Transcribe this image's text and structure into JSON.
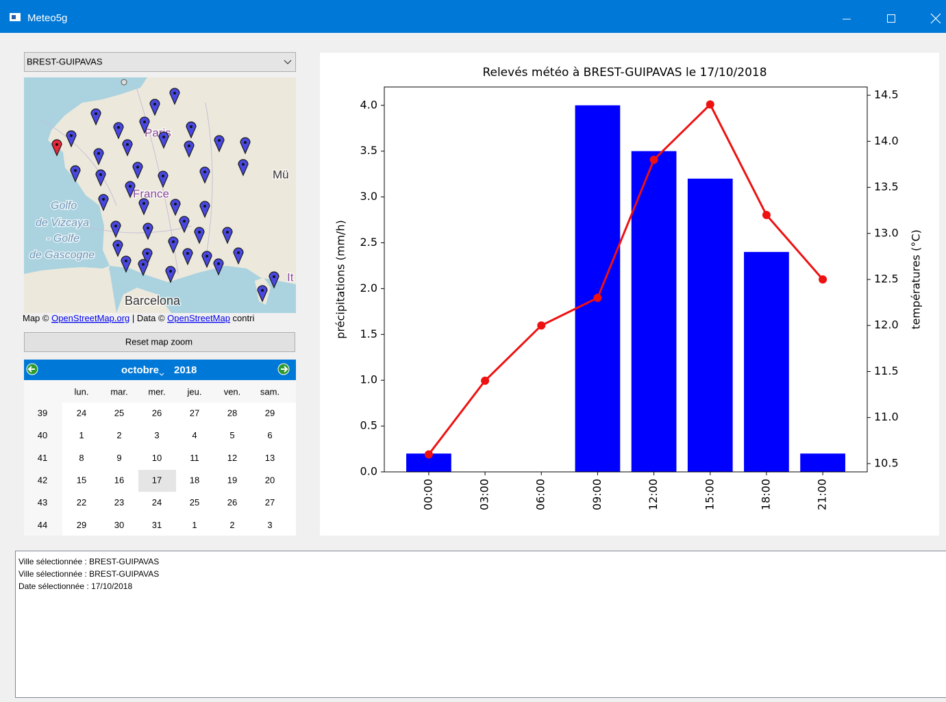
{
  "window": {
    "title": "Meteo5g"
  },
  "city_select": {
    "value": "BREST-GUIPAVAS"
  },
  "map": {
    "labels": [
      "Paris",
      "France",
      "Mü",
      "Golfo",
      "de Vizcaya",
      "- Golfe",
      "de Gascogne",
      "Barcelona",
      "It"
    ],
    "attribution": [
      "Map © ",
      "OpenStreetMap.org",
      " | Data © ",
      "OpenStreetMap",
      " contri"
    ]
  },
  "reset_button": {
    "label": "Reset map zoom"
  },
  "calendar": {
    "month": "octobre",
    "year": 2018,
    "weekdays": [
      "lun.",
      "mar.",
      "mer.",
      "jeu.",
      "ven.",
      "sam."
    ],
    "weeks": [
      {
        "number": 39,
        "days": [
          24,
          25,
          26,
          27,
          28,
          29
        ]
      },
      {
        "number": 40,
        "days": [
          1,
          2,
          3,
          4,
          5,
          6
        ]
      },
      {
        "number": 41,
        "days": [
          8,
          9,
          10,
          11,
          12,
          13
        ]
      },
      {
        "number": 42,
        "days": [
          15,
          16,
          17,
          18,
          19,
          20
        ]
      },
      {
        "number": 43,
        "days": [
          22,
          23,
          24,
          25,
          26,
          27
        ]
      },
      {
        "number": 44,
        "days": [
          29,
          30,
          31,
          1,
          2,
          3
        ]
      }
    ],
    "selected_day": 17
  },
  "chart_data": {
    "type": "bar",
    "title": "Relevés météo à BREST-GUIPAVAS le 17/10/2018",
    "y_label": "précipitations (mm/h)",
    "y2_label": "températures (°C)",
    "categories": [
      "00:00",
      "03:00",
      "06:00",
      "09:00",
      "12:00",
      "15:00",
      "18:00",
      "21:00"
    ],
    "series": [
      {
        "color": "#0000ff",
        "values": [
          0.2,
          0,
          0,
          4.0,
          3.5,
          3.2,
          2.4,
          0.2
        ]
      },
      {
        "type": "line",
        "axis": "y2",
        "color": "#ee1111",
        "values": [
          10.6,
          11.4,
          12.0,
          12.3,
          13.8,
          14.4,
          13.2,
          12.5
        ]
      }
    ],
    "ylim": [
      0,
      4.2
    ],
    "yticks": [
      {
        "value": 0,
        "label": "0.0"
      },
      0.5,
      {
        "value": 1,
        "label": "1.0"
      },
      1.5,
      {
        "value": 2,
        "label": "2.0"
      },
      2.5,
      {
        "value": 3,
        "label": "3.0"
      },
      3.5,
      {
        "value": 4,
        "label": "4.0"
      }
    ],
    "y2lim": [
      10.41,
      14.59
    ],
    "y2ticks": [
      10.5,
      {
        "value": 11,
        "label": "11.0"
      },
      11.5,
      {
        "value": 12,
        "label": "12.0"
      },
      12.5,
      {
        "value": 13,
        "label": "13.0"
      },
      13.5,
      {
        "value": 14,
        "label": "14.0"
      },
      14.5
    ],
    "grid": false
  },
  "log": {
    "lines": [
      "Ville sélectionnée : BREST-GUIPAVAS",
      "Ville sélectionnée : BREST-GUIPAVAS",
      "Date sélectionnée : 17/10/2018"
    ]
  }
}
